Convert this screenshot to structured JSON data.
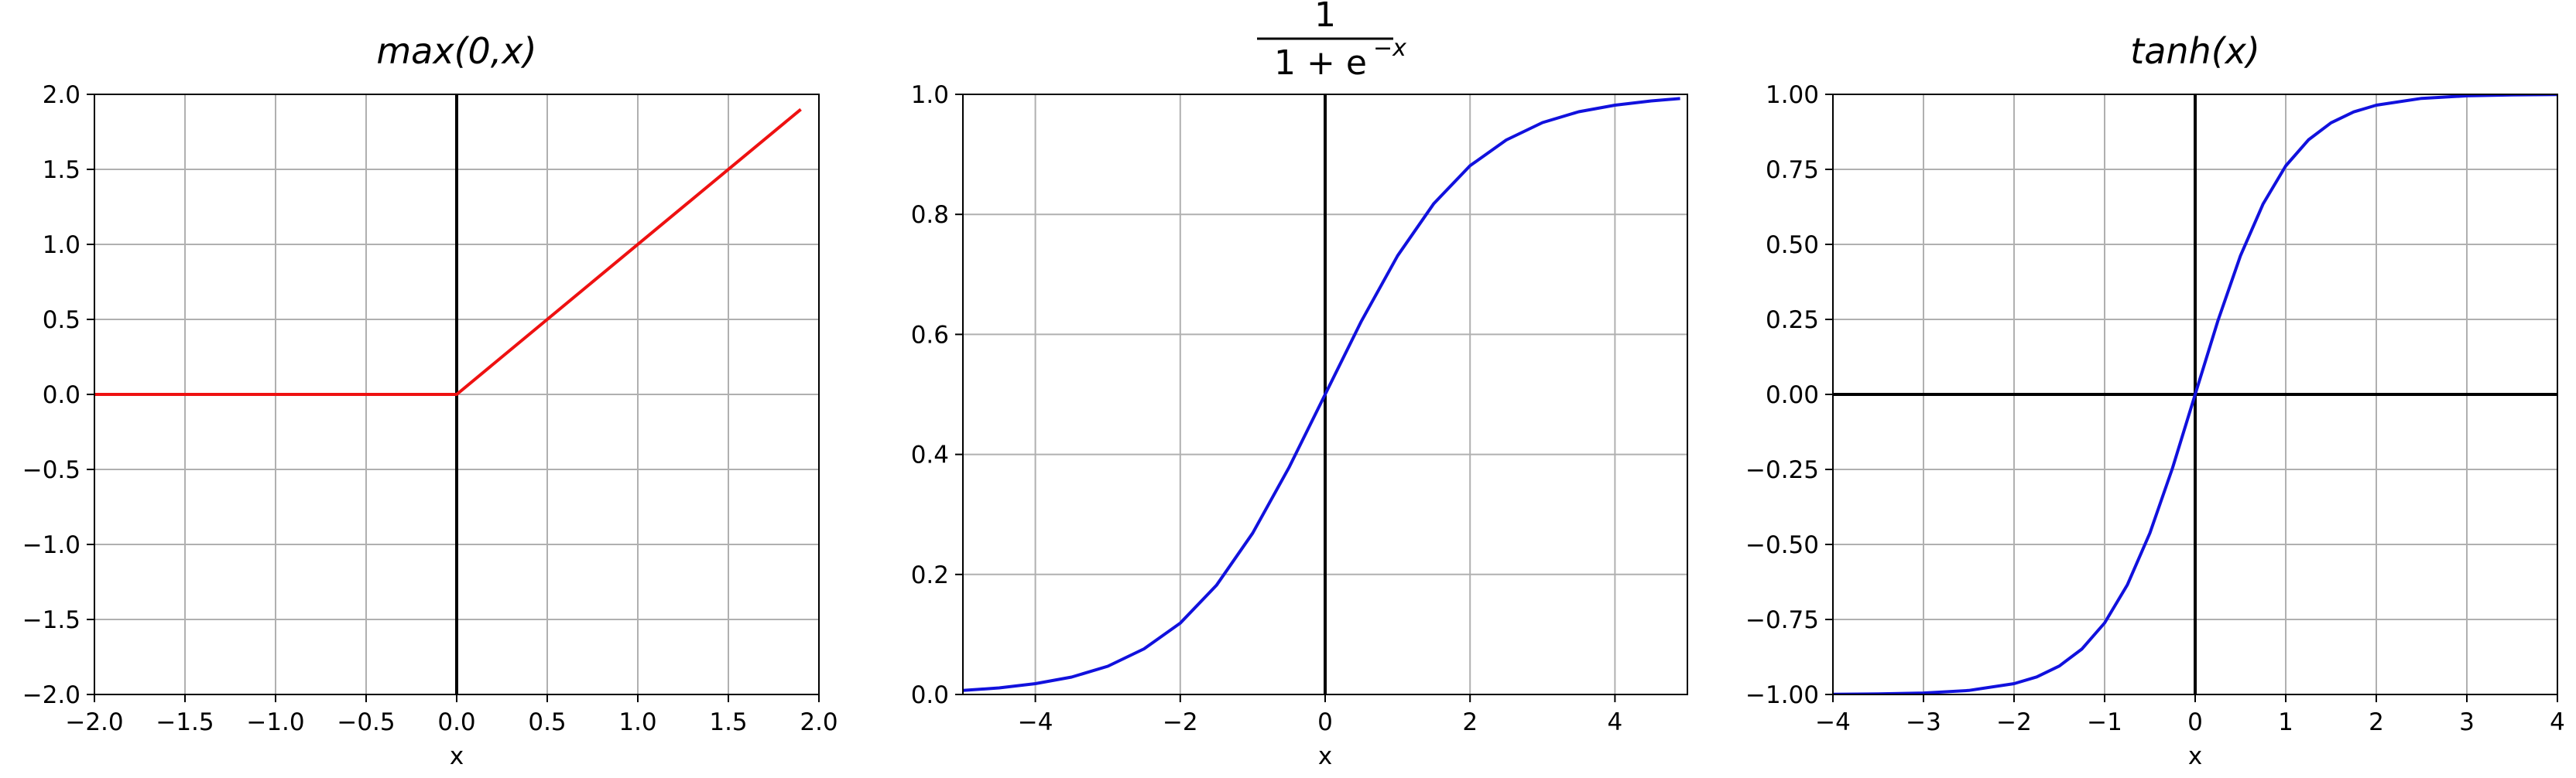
{
  "chart_data": [
    {
      "type": "line",
      "title": "max(0,x)",
      "xlabel": "x",
      "ylabel": "",
      "xlim": [
        -2.0,
        2.0
      ],
      "ylim": [
        -2.0,
        2.0
      ],
      "xticks": [
        -2.0,
        -1.5,
        -1.0,
        -0.5,
        0.0,
        0.5,
        1.0,
        1.5,
        2.0
      ],
      "xtick_labels": [
        "−2.0",
        "−1.5",
        "−1.0",
        "−0.5",
        "0.0",
        "0.5",
        "1.0",
        "1.5",
        "2.0"
      ],
      "yticks": [
        -2.0,
        -1.5,
        -1.0,
        -0.5,
        0.0,
        0.5,
        1.0,
        1.5,
        2.0
      ],
      "ytick_labels": [
        "−2.0",
        "−1.5",
        "−1.0",
        "−0.5",
        "0.0",
        "0.5",
        "1.0",
        "1.5",
        "2.0"
      ],
      "grid": true,
      "zero_lines": {
        "vertical": true,
        "horizontal": false
      },
      "series": [
        {
          "color": "#ee1111",
          "x": [
            -2.0,
            0.0,
            1.9
          ],
          "y": [
            0.0,
            0.0,
            1.9
          ]
        }
      ]
    },
    {
      "type": "line",
      "title": "1 / (1+e^(−x))",
      "title_parts": {
        "numerator": "1",
        "denominator": "1 + e",
        "exponent": "−x"
      },
      "xlabel": "x",
      "ylabel": "",
      "xlim": [
        -5.0,
        5.0
      ],
      "ylim": [
        0.0,
        1.0
      ],
      "xticks": [
        -4,
        -2,
        0,
        2,
        4
      ],
      "xtick_labels": [
        "−4",
        "−2",
        "0",
        "2",
        "4"
      ],
      "yticks": [
        0.0,
        0.2,
        0.4,
        0.6,
        0.8,
        1.0
      ],
      "ytick_labels": [
        "0.0",
        "0.2",
        "0.4",
        "0.6",
        "0.8",
        "1.0"
      ],
      "grid": true,
      "zero_lines": {
        "vertical": true,
        "horizontal": false
      },
      "series": [
        {
          "color": "#1111dd",
          "x": [
            -5.0,
            -4.5,
            -4.0,
            -3.5,
            -3.0,
            -2.5,
            -2.0,
            -1.5,
            -1.0,
            -0.5,
            0.0,
            0.5,
            1.0,
            1.5,
            2.0,
            2.5,
            3.0,
            3.5,
            4.0,
            4.5,
            4.9
          ],
          "y": [
            0.0067,
            0.011,
            0.018,
            0.029,
            0.047,
            0.076,
            0.119,
            0.182,
            0.269,
            0.378,
            0.5,
            0.622,
            0.731,
            0.818,
            0.881,
            0.924,
            0.953,
            0.971,
            0.982,
            0.989,
            0.993
          ]
        }
      ]
    },
    {
      "type": "line",
      "title": "tanh(x)",
      "xlabel": "x",
      "ylabel": "",
      "xlim": [
        -4.0,
        4.0
      ],
      "ylim": [
        -1.0,
        1.0
      ],
      "xticks": [
        -4,
        -3,
        -2,
        -1,
        0,
        1,
        2,
        3,
        4
      ],
      "xtick_labels": [
        "−4",
        "−3",
        "−2",
        "−1",
        "0",
        "1",
        "2",
        "3",
        "4"
      ],
      "yticks": [
        -1.0,
        -0.75,
        -0.5,
        -0.25,
        0.0,
        0.25,
        0.5,
        0.75,
        1.0
      ],
      "ytick_labels": [
        "−1.00",
        "−0.75",
        "−0.50",
        "−0.25",
        "0.00",
        "0.25",
        "0.50",
        "0.75",
        "1.00"
      ],
      "grid": true,
      "zero_lines": {
        "vertical": true,
        "horizontal": true
      },
      "series": [
        {
          "color": "#1111dd",
          "x": [
            -4.0,
            -3.5,
            -3.0,
            -2.5,
            -2.0,
            -1.75,
            -1.5,
            -1.25,
            -1.0,
            -0.75,
            -0.5,
            -0.25,
            0.0,
            0.25,
            0.5,
            0.75,
            1.0,
            1.25,
            1.5,
            1.75,
            2.0,
            2.5,
            3.0,
            3.5,
            4.0
          ],
          "y": [
            -0.9993,
            -0.9982,
            -0.9951,
            -0.9866,
            -0.964,
            -0.9414,
            -0.9051,
            -0.8483,
            -0.7616,
            -0.6351,
            -0.4621,
            -0.2449,
            0.0,
            0.2449,
            0.4621,
            0.6351,
            0.7616,
            0.8483,
            0.9051,
            0.9414,
            0.964,
            0.9866,
            0.9951,
            0.9982,
            0.9993
          ]
        }
      ]
    }
  ]
}
